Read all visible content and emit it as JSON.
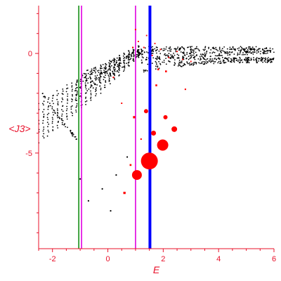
{
  "chart_data": {
    "type": "scatter",
    "title": "",
    "xlabel": "E",
    "ylabel": "<J3>",
    "xlim": [
      -2.5,
      6.0
    ],
    "ylim": [
      -9.8,
      2.4
    ],
    "x_ticks": [
      -2,
      0,
      2,
      4,
      6
    ],
    "x_tick_labels": [
      "-2",
      "0",
      "2",
      "4",
      "6"
    ],
    "y_ticks": [
      0,
      -5
    ],
    "y_tick_labels": [
      "0",
      "-5"
    ],
    "grid": false,
    "legend": "none",
    "colors": {
      "axis": "#e8102a",
      "points": "#000000",
      "markers": "#ff0000",
      "line_green": "#148c14",
      "line_magenta": "#e000e0",
      "line_blue": "#0000ff"
    },
    "vertical_lines": [
      {
        "x": -1.05,
        "color": "#148c14",
        "width": 1.6
      },
      {
        "x": -0.95,
        "color": "#e000e0",
        "width": 1.6
      },
      {
        "x": 1.0,
        "color": "#e000e0",
        "width": 1.6
      },
      {
        "x": 1.52,
        "color": "#0000ff",
        "width": 4
      }
    ],
    "black_points": {
      "description": "dense cloud of black eigenvalue dots: upper flat band near y≈0 for E>1, fan-shaped spreading branches between E≈-2.5 and 1, sparse points below",
      "upper_band": {
        "x_range": [
          1.2,
          6.0
        ],
        "y_range": [
          -1.2,
          0.4
        ]
      },
      "fan": {
        "x_range": [
          -2.5,
          1.0
        ],
        "y_range": [
          -4.5,
          0.5
        ]
      },
      "sparse_low": [
        {
          "x": -1.0,
          "y": -6.3
        },
        {
          "x": -0.7,
          "y": -7.4
        },
        {
          "x": 0.1,
          "y": -7.9
        },
        {
          "x": -0.2,
          "y": -6.8
        },
        {
          "x": 0.3,
          "y": -6.1
        },
        {
          "x": 0.7,
          "y": -5.2
        }
      ]
    },
    "red_markers": [
      {
        "x": 1.5,
        "y": -5.4,
        "size": 12
      },
      {
        "x": 1.98,
        "y": -4.6,
        "size": 8
      },
      {
        "x": 1.05,
        "y": -6.1,
        "size": 7
      },
      {
        "x": 2.4,
        "y": -3.8,
        "size": 4
      },
      {
        "x": 1.65,
        "y": -4.0,
        "size": 3.5
      },
      {
        "x": 1.38,
        "y": -2.9,
        "size": 3
      },
      {
        "x": 2.08,
        "y": -3.2,
        "size": 3
      },
      {
        "x": 0.95,
        "y": -3.2,
        "size": 2.5
      },
      {
        "x": 0.6,
        "y": -7.0,
        "size": 2.5
      },
      {
        "x": 0.82,
        "y": -5.6,
        "size": 2
      },
      {
        "x": 1.82,
        "y": -0.8,
        "size": 2
      },
      {
        "x": 1.75,
        "y": -1.6,
        "size": 2
      },
      {
        "x": 2.1,
        "y": -0.9,
        "size": 2
      },
      {
        "x": 2.8,
        "y": -1.8,
        "size": 1.6
      },
      {
        "x": 1.2,
        "y": -4.3,
        "size": 1.6
      },
      {
        "x": 0.2,
        "y": -1.2,
        "size": 1.6
      },
      {
        "x": 0.5,
        "y": -2.5,
        "size": 1.5
      },
      {
        "x": 1.0,
        "y": 1.2,
        "size": 1.6
      },
      {
        "x": 1.1,
        "y": 0.6,
        "size": 1.5
      },
      {
        "x": 1.3,
        "y": 0.3,
        "size": 1.5
      },
      {
        "x": 1.6,
        "y": -0.1,
        "size": 1.5
      },
      {
        "x": 1.9,
        "y": 0.2,
        "size": 1.5
      },
      {
        "x": 2.2,
        "y": -0.2,
        "size": 1.5
      },
      {
        "x": 2.5,
        "y": 0.1,
        "size": 1.5
      },
      {
        "x": 0.9,
        "y": 0.3,
        "size": 1.5
      },
      {
        "x": 1.4,
        "y": 0.9,
        "size": 1.4
      },
      {
        "x": 2.7,
        "y": -0.3,
        "size": 1.4
      },
      {
        "x": 3.0,
        "y": -0.4,
        "size": 1.4
      },
      {
        "x": 1.7,
        "y": 0.5,
        "size": 1.4
      }
    ]
  }
}
